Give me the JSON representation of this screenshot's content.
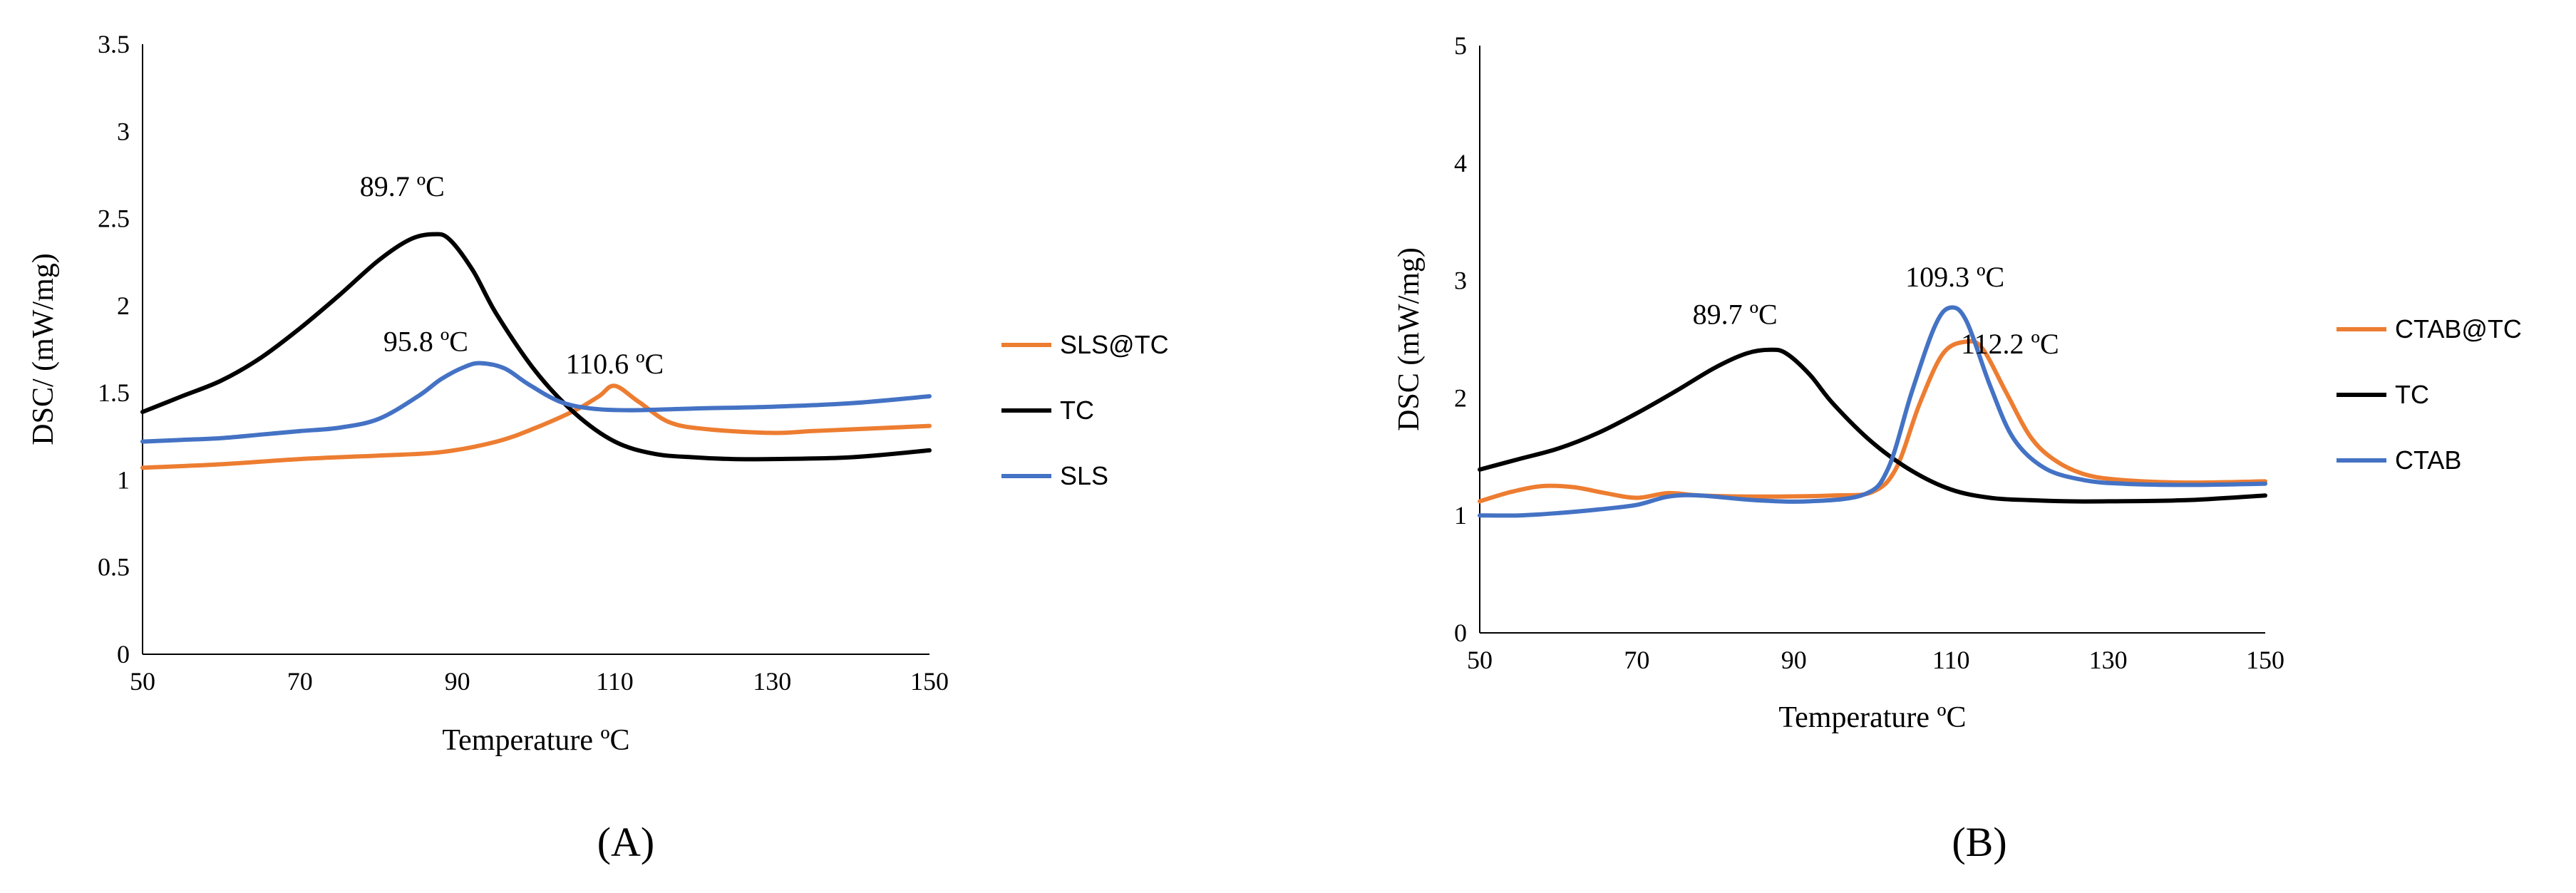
{
  "chart_data": [
    {
      "type": "line",
      "panel_label": "(A)",
      "xlabel": "Temperature ºC",
      "ylabel": "DSC/ (mW/mg)",
      "xlim": [
        50,
        150
      ],
      "ylim": [
        0,
        3.5
      ],
      "xticks": [
        50,
        70,
        90,
        110,
        130,
        150
      ],
      "yticks": [
        0,
        0.5,
        1,
        1.5,
        2,
        2.5,
        3,
        3.5
      ],
      "ytick_labels": [
        "0",
        "0.5",
        "1",
        "1.5",
        "2",
        "2.5",
        "3",
        "3.5"
      ],
      "legend": [
        "SLS@TC",
        "TC",
        "SLS"
      ],
      "series": [
        {
          "name": "SLS@TC",
          "color": "#ED7D31",
          "x": [
            50,
            60,
            70,
            80,
            88,
            95,
            100,
            105,
            108,
            110,
            113,
            117,
            122,
            130,
            135,
            140,
            150
          ],
          "y": [
            1.07,
            1.09,
            1.12,
            1.14,
            1.16,
            1.22,
            1.3,
            1.4,
            1.48,
            1.54,
            1.45,
            1.33,
            1.29,
            1.27,
            1.28,
            1.29,
            1.31
          ]
        },
        {
          "name": "TC",
          "color": "#000000",
          "x": [
            50,
            55,
            60,
            65,
            70,
            75,
            80,
            84,
            87,
            89,
            92,
            95,
            100,
            105,
            110,
            115,
            120,
            125,
            130,
            140,
            150
          ],
          "y": [
            1.39,
            1.48,
            1.57,
            1.7,
            1.87,
            2.06,
            2.26,
            2.38,
            2.41,
            2.38,
            2.2,
            1.95,
            1.62,
            1.38,
            1.22,
            1.15,
            1.13,
            1.12,
            1.12,
            1.13,
            1.17
          ]
        },
        {
          "name": "SLS",
          "color": "#4472C4",
          "x": [
            50,
            55,
            60,
            65,
            70,
            75,
            80,
            85,
            88,
            91,
            93,
            96,
            99,
            103,
            107,
            112,
            120,
            130,
            140,
            150
          ],
          "y": [
            1.22,
            1.23,
            1.24,
            1.26,
            1.28,
            1.3,
            1.35,
            1.48,
            1.58,
            1.65,
            1.67,
            1.64,
            1.55,
            1.45,
            1.41,
            1.4,
            1.41,
            1.42,
            1.44,
            1.48
          ]
        }
      ],
      "annotations": [
        {
          "text": "89.7 ºC",
          "x": 83,
          "y": 2.63
        },
        {
          "text": "95.8 ºC",
          "x": 86,
          "y": 1.74
        },
        {
          "text": "110.6 ºC",
          "x": 110,
          "y": 1.61
        }
      ]
    },
    {
      "type": "line",
      "panel_label": "(B)",
      "xlabel": "Temperature ºC",
      "ylabel": "DSC (mW/mg)",
      "xlim": [
        50,
        150
      ],
      "ylim": [
        0,
        5
      ],
      "xticks": [
        50,
        70,
        90,
        110,
        130,
        150
      ],
      "yticks": [
        0,
        1,
        2,
        3,
        4,
        5
      ],
      "ytick_labels": [
        "0",
        "1",
        "2",
        "3",
        "4",
        "5"
      ],
      "legend": [
        "CTAB@TC",
        "TC",
        "CTAB"
      ],
      "series": [
        {
          "name": "CTAB@TC",
          "color": "#ED7D31",
          "x": [
            50,
            54,
            58,
            62,
            66,
            70,
            74,
            78,
            85,
            95,
            100,
            103,
            106,
            109,
            112,
            114,
            117,
            120,
            123,
            127,
            132,
            140,
            150
          ],
          "y": [
            1.12,
            1.2,
            1.25,
            1.24,
            1.19,
            1.15,
            1.19,
            1.17,
            1.16,
            1.17,
            1.2,
            1.4,
            1.95,
            2.38,
            2.48,
            2.42,
            2.05,
            1.68,
            1.48,
            1.35,
            1.3,
            1.28,
            1.29
          ]
        },
        {
          "name": "TC",
          "color": "#000000",
          "x": [
            50,
            55,
            60,
            65,
            70,
            75,
            80,
            84,
            87,
            89,
            92,
            95,
            100,
            105,
            110,
            115,
            120,
            125,
            130,
            140,
            150
          ],
          "y": [
            1.39,
            1.48,
            1.57,
            1.7,
            1.87,
            2.06,
            2.26,
            2.38,
            2.41,
            2.38,
            2.2,
            1.95,
            1.62,
            1.38,
            1.22,
            1.15,
            1.13,
            1.12,
            1.12,
            1.13,
            1.17
          ]
        },
        {
          "name": "CTAB",
          "color": "#4472C4",
          "x": [
            50,
            55,
            60,
            65,
            70,
            74,
            78,
            85,
            92,
            99,
            102,
            105,
            108,
            110,
            112,
            115,
            118,
            122,
            127,
            132,
            140,
            150
          ],
          "y": [
            1.0,
            1.0,
            1.02,
            1.05,
            1.09,
            1.16,
            1.17,
            1.13,
            1.12,
            1.18,
            1.4,
            2.05,
            2.62,
            2.77,
            2.65,
            2.1,
            1.65,
            1.4,
            1.3,
            1.27,
            1.26,
            1.27
          ]
        }
      ],
      "annotations": [
        {
          "text": "89.7 ºC",
          "x": 82.5,
          "y": 2.63
        },
        {
          "text": "109.3 ºC",
          "x": 110.5,
          "y": 2.95
        },
        {
          "text": "112.2 ºC",
          "x": 117.5,
          "y": 2.38
        }
      ]
    }
  ]
}
